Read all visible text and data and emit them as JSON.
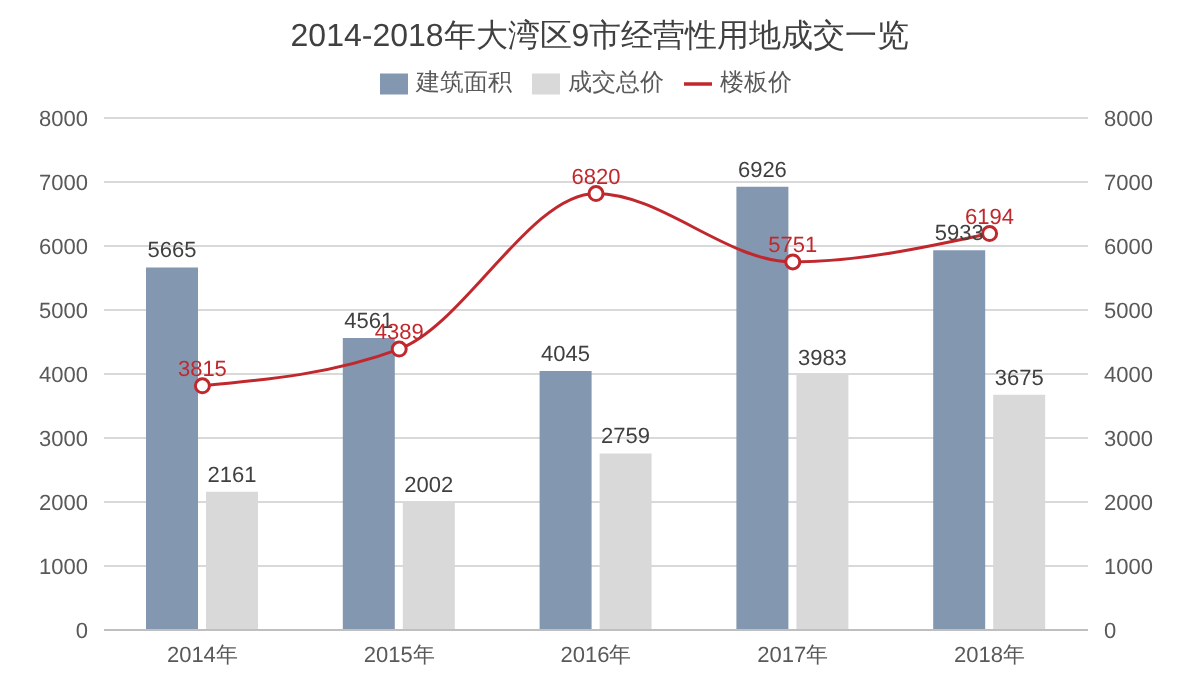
{
  "chart_data": {
    "type": "bar",
    "title": "2014-2018年大湾区9市经营性用地成交一览",
    "categories": [
      "2014年",
      "2015年",
      "2016年",
      "2017年",
      "2018年"
    ],
    "series": [
      {
        "name": "建筑面积",
        "color": "#8497b0",
        "values": [
          5665,
          4561,
          4045,
          6926,
          5933
        ]
      },
      {
        "name": "成交总价",
        "color": "#d9d9d9",
        "values": [
          2161,
          2002,
          2759,
          3983,
          3675
        ]
      },
      {
        "name": "楼板价",
        "type": "line",
        "axis": "y2",
        "color": "#c0282d",
        "marker": "circle",
        "values": [
          3815,
          4389,
          6820,
          5751,
          6194
        ]
      }
    ],
    "ylim": [
      0,
      8000
    ],
    "yticks": [
      0,
      1000,
      2000,
      3000,
      4000,
      5000,
      6000,
      7000,
      8000
    ],
    "y2lim": [
      0,
      8000
    ],
    "y2ticks": [
      0,
      1000,
      2000,
      3000,
      4000,
      5000,
      6000,
      7000,
      8000
    ],
    "grid": "y",
    "legend": "top",
    "data_labels": true
  }
}
